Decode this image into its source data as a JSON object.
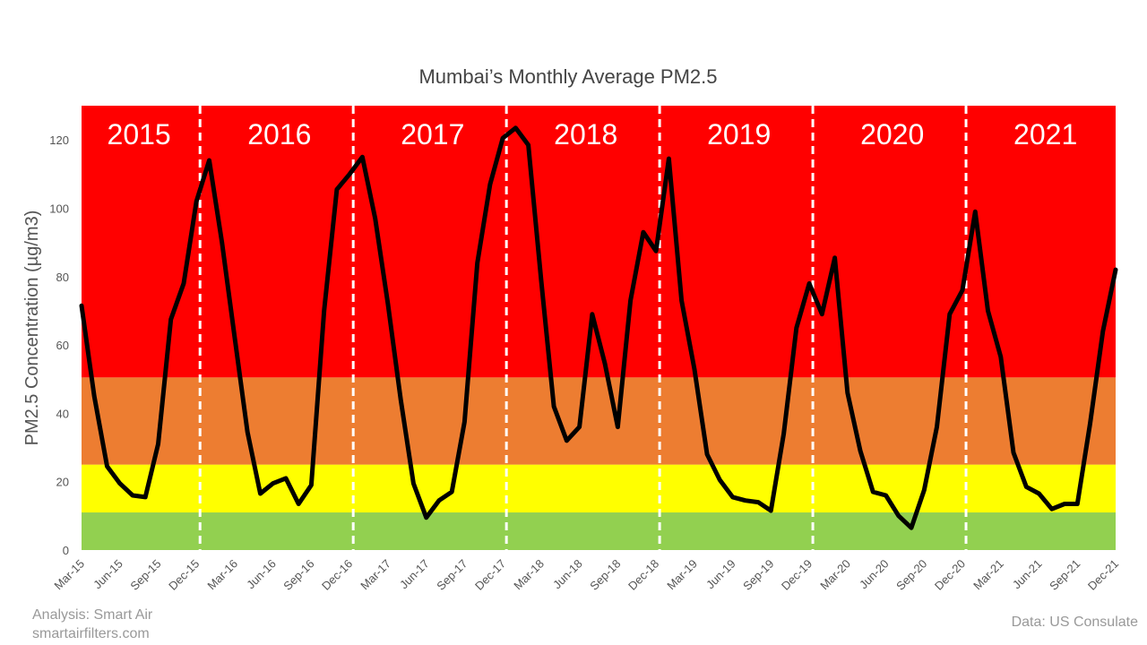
{
  "chart_data": {
    "type": "line",
    "title": "Mumbai’s Monthly Average PM2.5",
    "ylabel": "PM2.5 Concentration (µg/m3)",
    "xlabel": "",
    "ylim": [
      0,
      130
    ],
    "yticks": [
      0,
      20,
      40,
      60,
      80,
      100,
      120
    ],
    "bands": [
      {
        "from": 0,
        "to": 11,
        "color": "#92d050"
      },
      {
        "from": 11,
        "to": 25,
        "color": "#ffff00"
      },
      {
        "from": 25,
        "to": 50.5,
        "color": "#ed7d31"
      },
      {
        "from": 50.5,
        "to": 130,
        "color": "#ff0000"
      }
    ],
    "line_color": "#000000",
    "x": [
      "Mar-15",
      "Apr-15",
      "May-15",
      "Jun-15",
      "Jul-15",
      "Aug-15",
      "Sep-15",
      "Oct-15",
      "Nov-15",
      "Dec-15",
      "Jan-16",
      "Feb-16",
      "Mar-16",
      "Apr-16",
      "May-16",
      "Jun-16",
      "Jul-16",
      "Aug-16",
      "Sep-16",
      "Oct-16",
      "Nov-16",
      "Dec-16",
      "Jan-17",
      "Feb-17",
      "Mar-17",
      "Apr-17",
      "May-17",
      "Jun-17",
      "Jul-17",
      "Aug-17",
      "Sep-17",
      "Oct-17",
      "Nov-17",
      "Dec-17",
      "Jan-18",
      "Feb-18",
      "Mar-18",
      "Apr-18",
      "May-18",
      "Jun-18",
      "Jul-18",
      "Aug-18",
      "Sep-18",
      "Oct-18",
      "Nov-18",
      "Dec-18",
      "Jan-19",
      "Feb-19",
      "Mar-19",
      "Apr-19",
      "May-19",
      "Jun-19",
      "Jul-19",
      "Aug-19",
      "Sep-19",
      "Oct-19",
      "Nov-19",
      "Dec-19",
      "Jan-20",
      "Feb-20",
      "Mar-20",
      "Apr-20",
      "May-20",
      "Jun-20",
      "Jul-20",
      "Aug-20",
      "Sep-20",
      "Oct-20",
      "Nov-20",
      "Dec-20",
      "Jan-21",
      "Feb-21",
      "Mar-21",
      "Apr-21",
      "May-21",
      "Jun-21",
      "Jul-21",
      "Aug-21",
      "Sep-21",
      "Oct-21",
      "Nov-21",
      "Dec-21"
    ],
    "series": [
      {
        "name": "Monthly Average PM2.5",
        "values": [
          71.5,
          45,
          24.5,
          19.5,
          16,
          15.5,
          31,
          67.5,
          78,
          102,
          114,
          90,
          62,
          34.5,
          16.5,
          19.5,
          21,
          13.5,
          19,
          70,
          105.5,
          110,
          115,
          97,
          72,
          44,
          19.5,
          9.5,
          14.5,
          17,
          37.5,
          84,
          107,
          120.5,
          123.5,
          118.5,
          79,
          42,
          32,
          36,
          69,
          54.5,
          36,
          73,
          93,
          87.5,
          114.5,
          73,
          53,
          28,
          20.5,
          15.5,
          14.5,
          14,
          11.5,
          34,
          65,
          78,
          69,
          85.5,
          46,
          29,
          17,
          16,
          10,
          6.5,
          17.5,
          36,
          69,
          76,
          99,
          70,
          56.5,
          28.5,
          18.5,
          16.5,
          12,
          13.5,
          13.5,
          37,
          64,
          82
        ]
      }
    ],
    "x_tick_labels": [
      "Mar-15",
      "Jun-15",
      "Sep-15",
      "Dec-15",
      "Mar-16",
      "Jun-16",
      "Sep-16",
      "Dec-16",
      "Mar-17",
      "Jun-17",
      "Sep-17",
      "Dec-17",
      "Mar-18",
      "Jun-18",
      "Sep-18",
      "Dec-18",
      "Mar-19",
      "Jun-19",
      "Sep-19",
      "Dec-19",
      "Mar-20",
      "Jun-20",
      "Sep-20",
      "Dec-20",
      "Mar-21",
      "Jun-21",
      "Sep-21",
      "Dec-21"
    ],
    "year_dividers_after": [
      "Dec-15",
      "Dec-16",
      "Dec-17",
      "Dec-18",
      "Dec-19",
      "Dec-20"
    ],
    "annotations": [
      {
        "text": "2015",
        "month_pos": 4.5
      },
      {
        "text": "2016",
        "month_pos": 15.5
      },
      {
        "text": "2017",
        "month_pos": 27.5
      },
      {
        "text": "2018",
        "month_pos": 39.5
      },
      {
        "text": "2019",
        "month_pos": 51.5
      },
      {
        "text": "2020",
        "month_pos": 63.5
      },
      {
        "text": "2021",
        "month_pos": 75.5
      }
    ]
  },
  "footer": {
    "analysis": "Analysis: Smart Air",
    "website": "smartairfilters.com",
    "source": "Data: US Consulate"
  }
}
